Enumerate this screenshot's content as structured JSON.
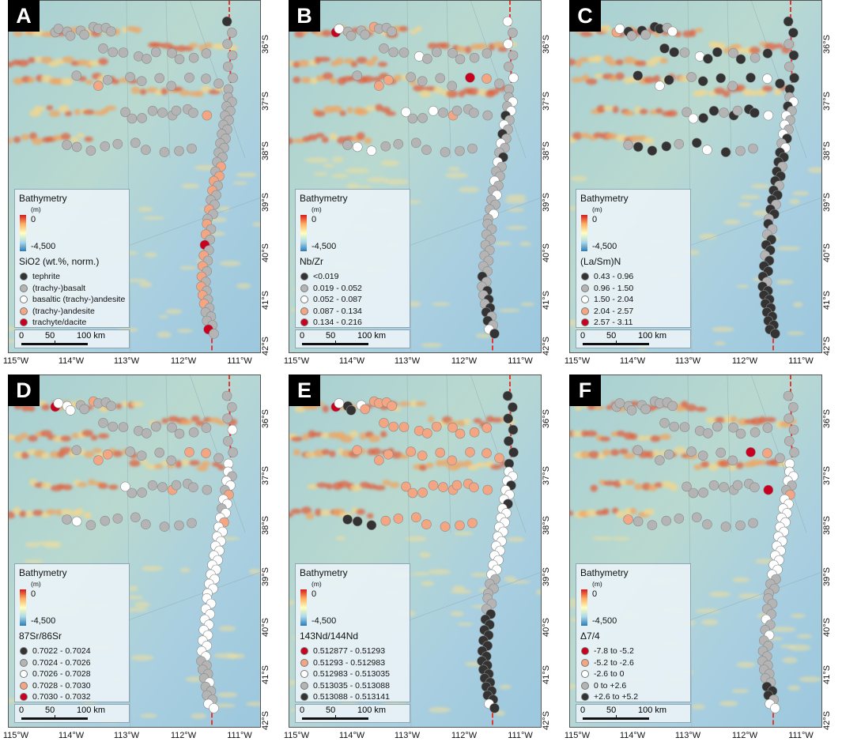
{
  "map": {
    "bathymetry_title": "Bathymetry",
    "unit": "(m)",
    "depth_max": "0",
    "depth_min": "-4,500",
    "ramp_colors": [
      "#d7191c",
      "#fdae61",
      "#ffffbf",
      "#abd9e9",
      "#2c7bb6"
    ],
    "scale_labels": [
      "0",
      "50",
      "100 km"
    ],
    "lon_labels": [
      "115°W",
      "114°W",
      "113°W",
      "112°W",
      "111°W"
    ],
    "lat_labels": [
      "36°S",
      "37°S",
      "38°S",
      "39°S",
      "40°S",
      "41°S",
      "42°S"
    ],
    "ridge_color": "#e6372e"
  },
  "panels": [
    {
      "letter": "A",
      "variable": "SiO2 (wt.%, norm.)",
      "classes": [
        {
          "label": "tephrite",
          "color": "#333333"
        },
        {
          "label": "(trachy-)basalt",
          "color": "#b4b4b4"
        },
        {
          "label": "basaltic (trachy-)andesite",
          "color": "#ffffff"
        },
        {
          "label": "(trachy-)andesite",
          "color": "#f4a582"
        },
        {
          "label": "trachyte/dacite",
          "color": "#ca0020"
        }
      ]
    },
    {
      "letter": "B",
      "variable": "Nb/Zr",
      "classes": [
        {
          "label": "<0.019",
          "color": "#333333"
        },
        {
          "label": "0.019 - 0.052",
          "color": "#b4b4b4"
        },
        {
          "label": "0.052 - 0.087",
          "color": "#ffffff"
        },
        {
          "label": "0.087 - 0.134",
          "color": "#f4a582"
        },
        {
          "label": "0.134 - 0.216",
          "color": "#ca0020"
        }
      ]
    },
    {
      "letter": "C",
      "variable": "(La/Sm)N",
      "classes": [
        {
          "label": "0.43 - 0.96",
          "color": "#333333"
        },
        {
          "label": "0.96 - 1.50",
          "color": "#b4b4b4"
        },
        {
          "label": "1.50 - 2.04",
          "color": "#ffffff"
        },
        {
          "label": "2.04 - 2.57",
          "color": "#f4a582"
        },
        {
          "label": "2.57 - 3.11",
          "color": "#ca0020"
        }
      ]
    },
    {
      "letter": "D",
      "variable": "87Sr/86Sr",
      "classes": [
        {
          "label": "0.7022 - 0.7024",
          "color": "#333333"
        },
        {
          "label": "0.7024 - 0.7026",
          "color": "#b4b4b4"
        },
        {
          "label": "0.7026 - 0.7028",
          "color": "#ffffff"
        },
        {
          "label": "0.7028 - 0.7030",
          "color": "#f4a582"
        },
        {
          "label": "0.7030 - 0.7032",
          "color": "#ca0020"
        }
      ]
    },
    {
      "letter": "E",
      "variable": "143Nd/144Nd",
      "classes": [
        {
          "label": "0.512877 - 0.51293",
          "color": "#ca0020"
        },
        {
          "label": "0.51293 - 0.512983",
          "color": "#f4a582"
        },
        {
          "label": "0.512983 - 0.513035",
          "color": "#ffffff"
        },
        {
          "label": "0.513035 - 0.513088",
          "color": "#b4b4b4"
        },
        {
          "label": "0.513088 - 0.513141",
          "color": "#333333"
        }
      ]
    },
    {
      "letter": "F",
      "variable": "Δ7/4",
      "classes": [
        {
          "label": "-7.8 to -5.2",
          "color": "#ca0020"
        },
        {
          "label": "-5.2 to -2.6",
          "color": "#f4a582"
        },
        {
          "label": "-2.6 to 0",
          "color": "#ffffff"
        },
        {
          "label": "0 to +2.6",
          "color": "#b4b4b4"
        },
        {
          "label": "+2.6 to +5.2",
          "color": "#333333"
        }
      ]
    }
  ],
  "samples": {
    "A": {
      "ridge": [
        [
          0,
          1,
          1,
          1,
          1,
          1,
          1
        ],
        [
          1,
          1,
          1,
          1,
          1,
          1,
          1,
          1,
          1,
          1,
          1,
          1
        ],
        [
          1,
          1,
          1,
          3,
          1,
          3,
          3,
          1,
          3,
          1,
          1,
          1,
          3,
          1,
          1
        ],
        [
          3,
          1,
          3,
          1,
          4,
          1,
          3,
          1,
          3,
          1,
          3,
          1
        ],
        [
          3,
          1,
          3,
          1,
          3,
          1,
          1,
          1,
          1,
          1,
          4,
          1
        ]
      ],
      "seamount": [
        1,
        1,
        1,
        1,
        1,
        1,
        1,
        1,
        1,
        1,
        1,
        3,
        1,
        1,
        1,
        1,
        1,
        1,
        1,
        1,
        1,
        1,
        1,
        1,
        1,
        1,
        1,
        1,
        1,
        3,
        1,
        1,
        1,
        1,
        1,
        1,
        1,
        1,
        1,
        1,
        1,
        1,
        1,
        1,
        1,
        1,
        1,
        1,
        1,
        1
      ]
    },
    "B": {
      "ridge": [
        [
          2,
          1,
          2,
          1,
          1,
          2,
          1
        ],
        [
          1,
          2,
          1,
          2,
          0,
          1,
          2,
          1,
          0,
          1,
          2,
          1
        ],
        [
          1,
          0,
          2,
          1,
          1,
          1,
          2,
          1,
          1,
          2,
          1,
          1,
          1,
          2,
          1
        ],
        [
          1,
          1,
          1,
          1,
          1,
          1,
          1,
          1,
          1,
          1,
          0,
          1
        ],
        [
          1,
          0,
          1,
          0,
          1,
          0,
          0,
          1,
          0,
          1,
          2,
          0
        ]
      ],
      "seamount": [
        4,
        2,
        1,
        1,
        1,
        1,
        3,
        1,
        1,
        1,
        1,
        3,
        3,
        1,
        1,
        1,
        1,
        4,
        3,
        1,
        2,
        1,
        1,
        2,
        1,
        3,
        1,
        1,
        1,
        1,
        1,
        2,
        2,
        1,
        1,
        1,
        1,
        1,
        1,
        1,
        1,
        1,
        1,
        2,
        1,
        1,
        1,
        1,
        1,
        1
      ]
    },
    "C": {
      "ridge": [
        [
          0,
          0,
          1,
          0,
          1,
          0,
          0
        ],
        [
          1,
          2,
          0,
          1,
          2,
          1,
          2,
          1,
          2,
          0,
          1,
          2
        ],
        [
          0,
          0,
          0,
          1,
          0,
          0,
          0,
          1,
          0,
          0,
          0,
          1,
          0,
          0,
          1
        ],
        [
          0,
          1,
          1,
          0,
          0,
          0,
          1,
          0,
          0,
          0,
          0,
          1
        ],
        [
          0,
          0,
          0,
          0,
          0,
          0,
          0,
          0,
          0,
          0,
          0,
          0
        ]
      ],
      "seamount": [
        3,
        2,
        0,
        1,
        0,
        1,
        0,
        0,
        1,
        2,
        0,
        2,
        0,
        1,
        0,
        0,
        1,
        0,
        2,
        0,
        1,
        2,
        0,
        0,
        1,
        0,
        1,
        0,
        0,
        2,
        1,
        0,
        0,
        0,
        1,
        0,
        2,
        0,
        1,
        1,
        0,
        0,
        1,
        2,
        0,
        0,
        1,
        0,
        1,
        0
      ]
    },
    "D": {
      "ridge": [
        [
          1,
          1,
          1,
          2,
          1,
          1,
          2
        ],
        [
          2,
          1,
          2,
          2,
          1,
          3,
          2,
          2,
          1,
          2,
          2,
          3
        ],
        [
          2,
          2,
          2,
          2,
          2,
          2,
          2,
          2,
          2,
          2,
          2,
          2,
          2,
          2,
          2
        ],
        [
          2,
          2,
          2,
          2,
          2,
          2,
          2,
          2,
          2,
          2,
          2,
          2
        ],
        [
          1,
          1,
          1,
          1,
          1,
          2,
          1,
          1,
          1,
          1,
          2,
          2
        ]
      ],
      "seamount": [
        4,
        2,
        2,
        2,
        1,
        1,
        3,
        1,
        1,
        1,
        1,
        3,
        3,
        1,
        1,
        1,
        1,
        3,
        3,
        1,
        2,
        1,
        1,
        1,
        1,
        3,
        1,
        1,
        1,
        1,
        1,
        2,
        1,
        1,
        1,
        1,
        1,
        1,
        1,
        1,
        1,
        1,
        1,
        1,
        1,
        1,
        1,
        1,
        1,
        1
      ]
    },
    "E": {
      "ridge": [
        [
          4,
          4,
          4,
          4,
          4,
          4,
          4
        ],
        [
          2,
          2,
          2,
          4,
          2,
          2,
          2,
          4,
          2,
          2,
          2,
          2
        ],
        [
          2,
          2,
          2,
          2,
          2,
          2,
          2,
          2,
          2,
          2,
          2,
          3,
          3,
          3,
          3
        ],
        [
          3,
          3,
          3,
          4,
          4,
          4,
          4,
          4,
          4,
          4,
          4,
          4
        ],
        [
          4,
          4,
          4,
          4,
          4,
          4,
          4,
          4,
          4,
          4,
          2,
          4
        ]
      ],
      "seamount": [
        0,
        2,
        4,
        4,
        2,
        1,
        1,
        1,
        1,
        1,
        1,
        1,
        1,
        1,
        1,
        1,
        1,
        1,
        1,
        1,
        1,
        1,
        1,
        1,
        1,
        1,
        1,
        1,
        1,
        1,
        4,
        4,
        4,
        1,
        1,
        1,
        1,
        1,
        1,
        1,
        1,
        1,
        1,
        1,
        1,
        1,
        1,
        1,
        1,
        1
      ]
    },
    "F": {
      "ridge": [
        [
          3,
          3,
          3,
          3,
          3,
          3,
          2
        ],
        [
          2,
          2,
          2,
          3,
          3,
          1,
          2,
          2,
          2,
          2,
          2,
          2
        ],
        [
          2,
          2,
          2,
          2,
          2,
          2,
          2,
          2,
          2,
          2,
          2,
          3,
          3,
          3,
          3
        ],
        [
          3,
          3,
          3,
          3,
          2,
          3,
          3,
          2,
          3,
          3,
          3,
          3
        ],
        [
          3,
          3,
          3,
          3,
          3,
          3,
          4,
          4,
          4,
          3,
          2,
          2
        ]
      ],
      "seamount": [
        3,
        3,
        3,
        3,
        3,
        3,
        3,
        3,
        3,
        3,
        3,
        3,
        3,
        3,
        3,
        3,
        3,
        0,
        1,
        3,
        3,
        3,
        3,
        3,
        3,
        3,
        3,
        3,
        3,
        0,
        1,
        3,
        3,
        3,
        3,
        3,
        3,
        3,
        3,
        3,
        3,
        3,
        3,
        3,
        3,
        3,
        3,
        3,
        3,
        3
      ]
    }
  }
}
